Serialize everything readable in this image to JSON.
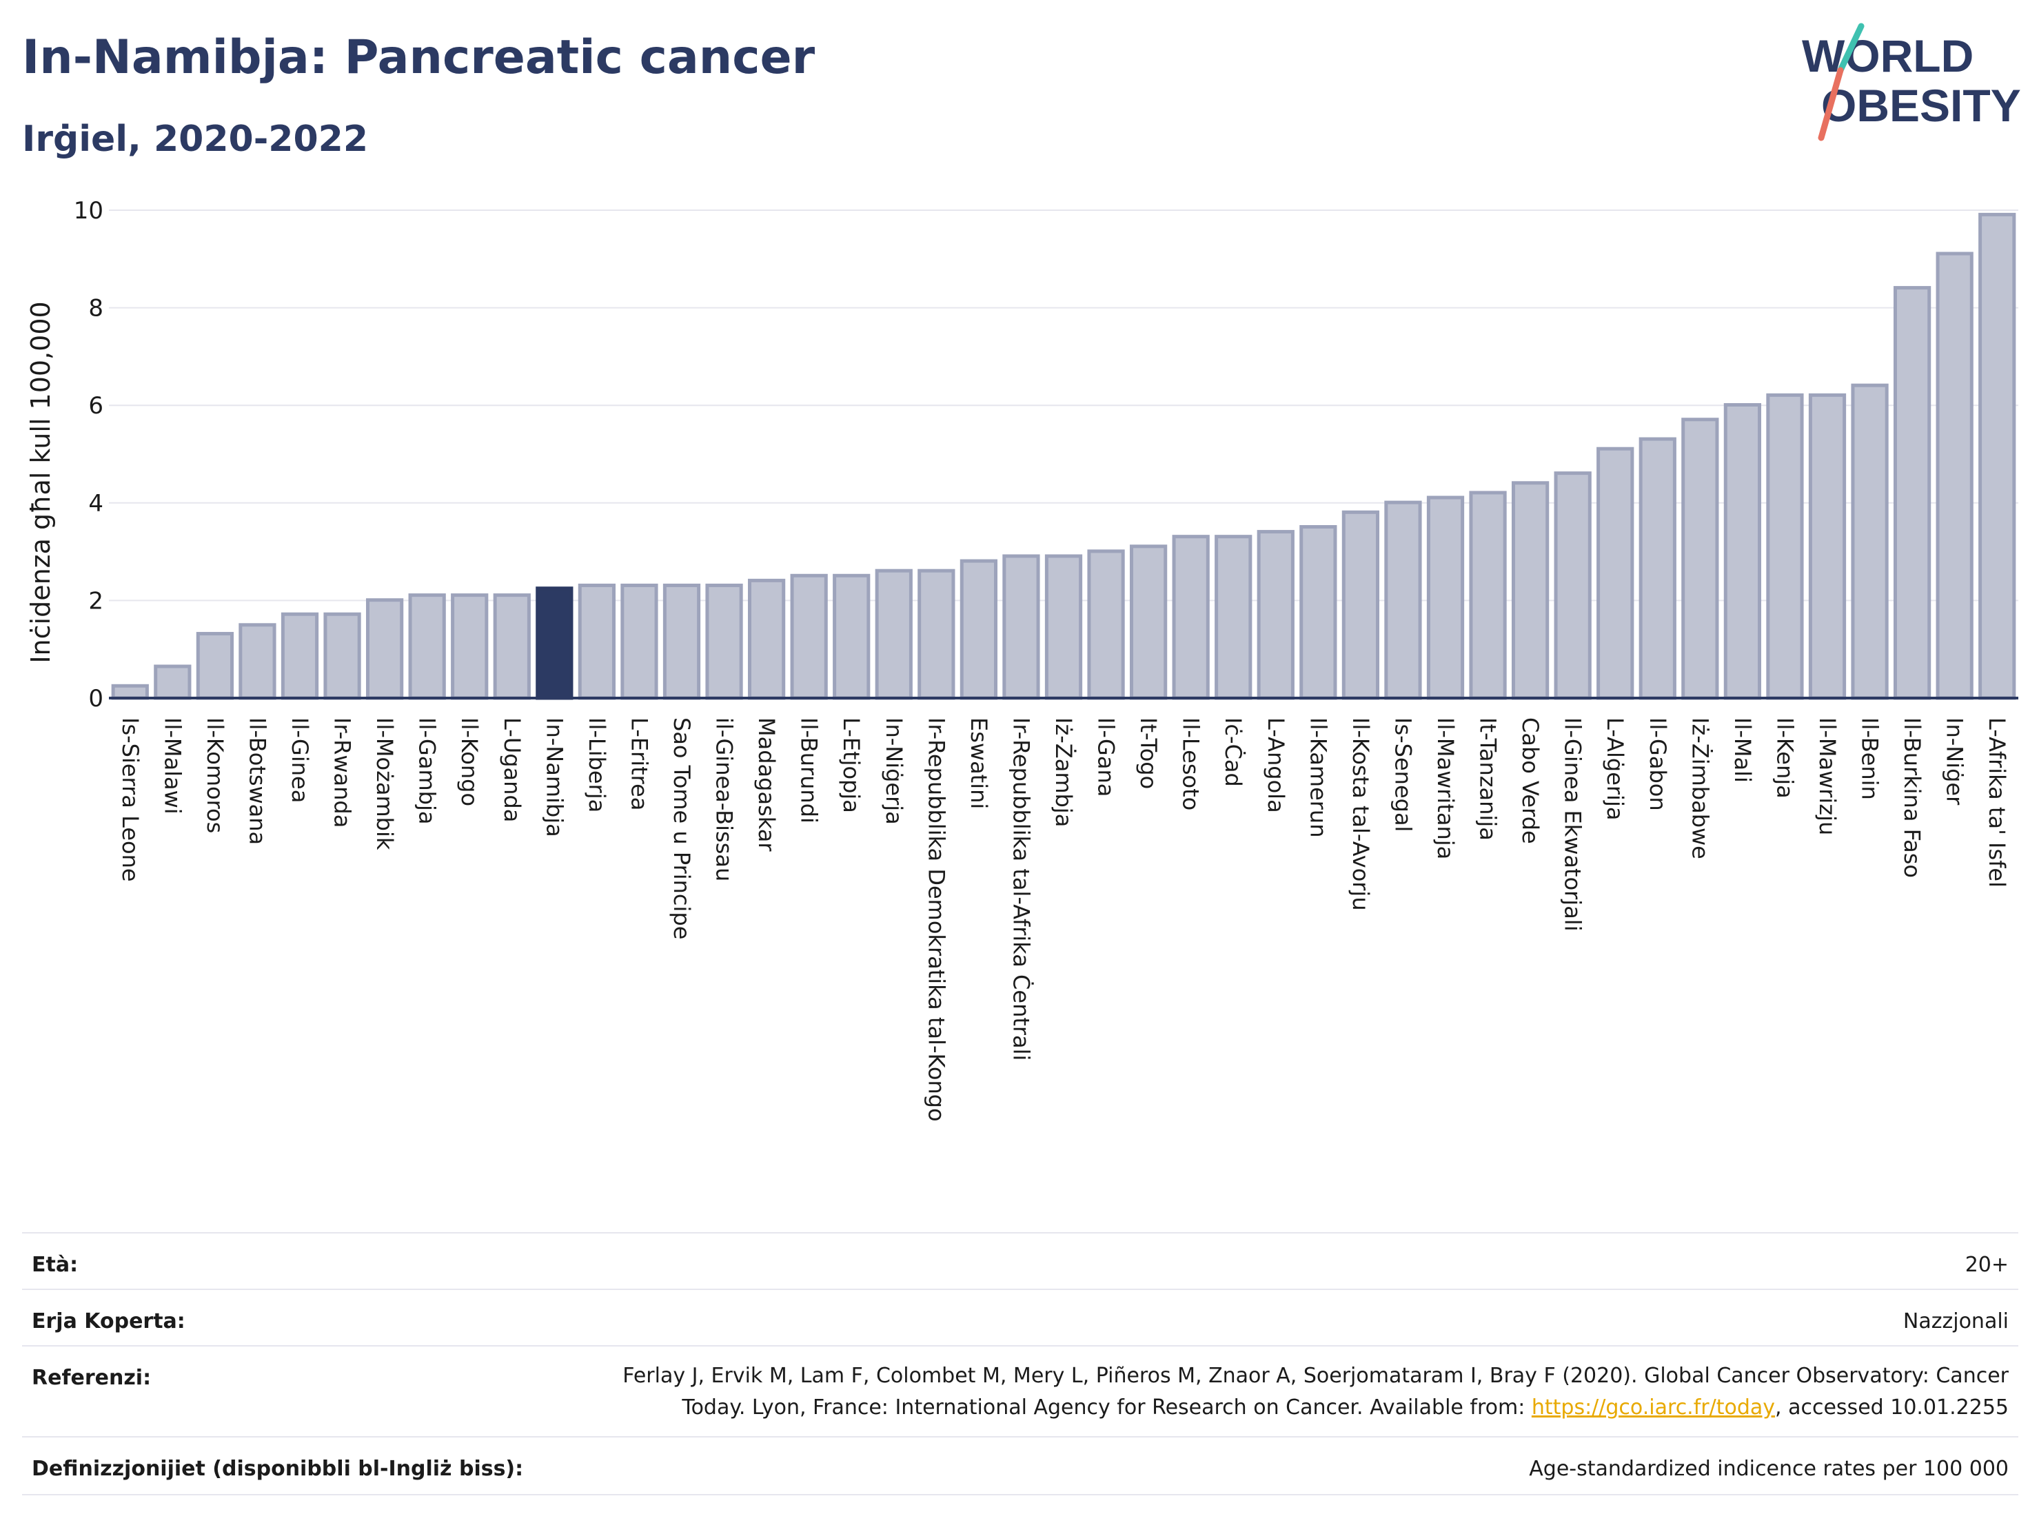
{
  "header": {
    "title": "In-Namibja: Pancreatic cancer",
    "subtitle": "Irġiel, 2020-2022"
  },
  "logo": {
    "line1": "WORLD",
    "line2": "OBESITY"
  },
  "chart_data": {
    "type": "bar",
    "ylabel": "Inċidenza għal kull 100,000",
    "xlabel": "",
    "ylim": [
      0,
      10
    ],
    "yticks": [
      0,
      2,
      4,
      6,
      8,
      10
    ],
    "grid": true,
    "highlight": "In-Namibja",
    "colors": {
      "bar": "#bfc3d2",
      "bar_stroke": "#9da3bb",
      "highlight": "#2c3a63"
    },
    "categories": [
      "Is-Sierra Leone",
      "Il-Malawi",
      "Il-Komoros",
      "Il-Botswana",
      "Il-Ginea",
      "Ir-Rwanda",
      "Il-Możambik",
      "Il-Gambja",
      "Il-Kongo",
      "L-Uganda",
      "In-Namibja",
      "Il-Liberja",
      "L-Eritrea",
      "Sao Tome u Principe",
      "il-Ginea-Bissau",
      "Madagaskar",
      "Il-Burundi",
      "L-Etjopja",
      "In-Niġerja",
      "Ir-Repubblika Demokratika tal-Kongo",
      "Eswatini",
      "Ir-Repubblika tal-Afrika Ċentrali",
      "Iż-Żambja",
      "Il-Gana",
      "It-Togo",
      "Il-Lesoto",
      "Iċ-Ċad",
      "L-Angola",
      "Il-Kamerun",
      "Il-Kosta tal-Avorju",
      "Is-Senegal",
      "Il-Mawritanja",
      "It-Tanzanija",
      "Cabo Verde",
      "Il-Ginea Ekwatorjali",
      "L-Alġerija",
      "Il-Gabon",
      "Iż-Żimbabwe",
      "Il-Mali",
      "Il-Kenja",
      "Il-Mawrizju",
      "Il-Benin",
      "Il-Burkina Faso",
      "In-Niġer",
      "L-Afrika ta' Isfel"
    ],
    "values": [
      0.25,
      0.65,
      1.32,
      1.5,
      1.72,
      1.72,
      2.01,
      2.11,
      2.11,
      2.11,
      2.25,
      2.31,
      2.31,
      2.31,
      2.31,
      2.41,
      2.51,
      2.51,
      2.61,
      2.61,
      2.81,
      2.91,
      2.91,
      3.01,
      3.11,
      3.31,
      3.31,
      3.41,
      3.51,
      3.81,
      4.01,
      4.11,
      4.21,
      4.41,
      4.61,
      5.11,
      5.31,
      5.71,
      6.01,
      6.21,
      6.21,
      6.41,
      8.41,
      9.11,
      9.91
    ]
  },
  "meta": {
    "age_label": "Età:",
    "age_value": "20+",
    "area_label": "Erja Koperta:",
    "area_value": "Nazzjonali",
    "ref_label": "Referenzi:",
    "ref_line1": "Ferlay J, Ervik M, Lam F, Colombet M, Mery L, Piñeros M, Znaor A, Soerjomataram I, Bray F (2020). Global Cancer Observatory: Cancer",
    "ref_line2_pre": "Today. Lyon, France: International Agency for Research on Cancer. Available from: ",
    "ref_link": "https://gco.iarc.fr/today",
    "ref_line2_post": ", accessed 10.01.2255",
    "def_label": "Definizzjonijiet (disponibbli bl-Ingliż biss):",
    "def_value": "Age-standardized indicence rates per 100 000"
  }
}
